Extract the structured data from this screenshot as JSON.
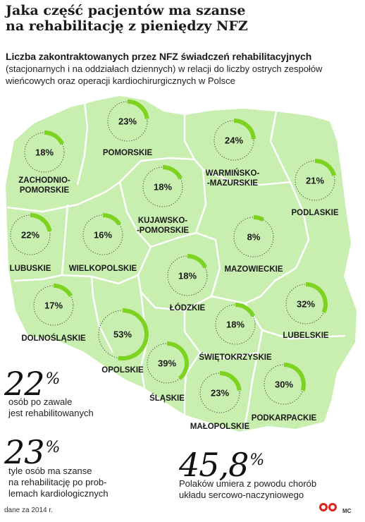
{
  "header": {
    "title_line1": "Jaka część pacjentów ma szanse",
    "title_line2": "na rehabilitację z pieniędzy NFZ",
    "subtitle": "Liczba zakontraktowanych przez NFZ świadczeń rehabilitacyjnych",
    "desc": "(stacjonarnych i na oddziałach dziennych) w relacji do liczby ostrych zespołów wieńcowych oraz operacji kardiochirurgicznych w Polsce"
  },
  "chart_data": {
    "type": "map-donut",
    "unit": "%",
    "categories": [
      "POMORSKIE",
      "ZACHODNIO-POMORSKIE",
      "WARMIŃSKO-MAZURSKIE",
      "PODLASKIE",
      "KUJAWSKO-POMORSKIE",
      "LUBUSKIE",
      "WIELKOPOLSKIE",
      "MAZOWIECKIE",
      "ŁÓDZKIE",
      "DOLNOŚLĄSKIE",
      "LUBELSKIE",
      "OPOLSKIE",
      "ŚWIĘTOKRZYSKIE",
      "ŚLĄSKIE",
      "MAŁOPOLSKIE",
      "PODKARPACKIE"
    ],
    "values": [
      23,
      18,
      24,
      21,
      18,
      22,
      16,
      8,
      18,
      17,
      32,
      53,
      18,
      39,
      23,
      30
    ],
    "value_labels": [
      "23%",
      "18%",
      "24%",
      "21%",
      "18%",
      "22%",
      "16%",
      "8%",
      "18%",
      "17%",
      "32%",
      "53%",
      "18%",
      "39%",
      "23%",
      "30%"
    ],
    "label_lines": [
      [
        "POMORSKIE"
      ],
      [
        "ZACHODNIO-",
        "POMORSKIE"
      ],
      [
        "WARMIŃSKO-",
        "-MAZURSKIE"
      ],
      [
        "PODLASKIE"
      ],
      [
        "KUJAWSKO-",
        "-POMORSKIE"
      ],
      [
        "LUBUSKIE"
      ],
      [
        "WIELKOPOLSKIE"
      ],
      [
        "MAZOWIECKIE"
      ],
      [
        "ŁÓDZKIE"
      ],
      [
        "DOLNOŚLĄSKIE"
      ],
      [
        "LUBELSKIE"
      ],
      [
        "OPOLSKIE"
      ],
      [
        "ŚWIĘTOKRZYSKIE"
      ],
      [
        "ŚLĄSKIE"
      ],
      [
        "MAŁOPOLSKIE"
      ],
      [
        "PODKARPACKIE"
      ]
    ],
    "colors": {
      "arc": "#7ed321",
      "map": "#c9efb0",
      "border": "#ffffff",
      "ring": "#444444"
    }
  },
  "stats": [
    {
      "number": "22",
      "unit": "%",
      "line1": "osób po zawale",
      "line2": "jest rehabilitowanych"
    },
    {
      "number": "23",
      "unit": "%",
      "line1": "tyle osób ma szanse",
      "line2": "na rehabilitację po prob-",
      "line3": "lemach kardiologicznych"
    },
    {
      "number": "45,8",
      "unit": "%",
      "line1": "Polaków umiera z powodu chorób",
      "line2": "układu sercowo-naczyniowego"
    }
  ],
  "footer": {
    "note": "dane za 2014 r.",
    "author": "MC"
  }
}
